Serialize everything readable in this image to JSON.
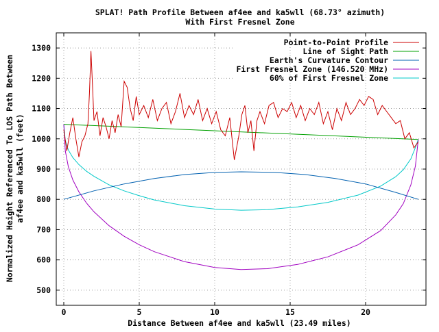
{
  "chart_data": {
    "type": "line",
    "title_line1": "SPLAT! Path Profile Between af4ee and ka5wll (68.73° azimuth)",
    "title_line2": "With First Fresnel Zone",
    "xlabel": "Distance Between af4ee and ka5wll (23.49 miles)",
    "ylabel_line1": "Normalized Height Referenced To LOS Path Between",
    "ylabel_line2": "af4ee and ka5wll (feet)",
    "xlim": [
      -0.5,
      24
    ],
    "ylim": [
      450,
      1350
    ],
    "x_ticks": [
      0,
      5,
      10,
      15,
      20
    ],
    "y_ticks": [
      500,
      600,
      700,
      800,
      900,
      1000,
      1100,
      1200,
      1300
    ],
    "grid": true,
    "legend_position": "top-right",
    "series": [
      {
        "name": "Point-to-Point Profile",
        "color": "#cc0000",
        "x": [
          0,
          0.2,
          0.4,
          0.6,
          0.8,
          1.0,
          1.2,
          1.4,
          1.6,
          1.7,
          1.8,
          1.9,
          2.0,
          2.2,
          2.4,
          2.6,
          2.8,
          3.0,
          3.2,
          3.4,
          3.6,
          3.8,
          4.0,
          4.2,
          4.4,
          4.6,
          4.8,
          5.0,
          5.3,
          5.6,
          5.9,
          6.2,
          6.5,
          6.8,
          7.1,
          7.4,
          7.7,
          8.0,
          8.3,
          8.6,
          8.9,
          9.2,
          9.5,
          9.8,
          10.1,
          10.4,
          10.7,
          11.0,
          11.3,
          11.6,
          11.8,
          12.0,
          12.2,
          12.4,
          12.6,
          12.8,
          13.0,
          13.3,
          13.6,
          13.9,
          14.2,
          14.5,
          14.8,
          15.1,
          15.4,
          15.7,
          16.0,
          16.3,
          16.6,
          16.9,
          17.2,
          17.5,
          17.8,
          18.1,
          18.4,
          18.7,
          19.0,
          19.3,
          19.6,
          19.9,
          20.2,
          20.5,
          20.8,
          21.1,
          21.4,
          21.7,
          22.0,
          22.3,
          22.6,
          22.9,
          23.2,
          23.49
        ],
        "y": [
          1030,
          960,
          1020,
          1070,
          1000,
          940,
          990,
          1010,
          1050,
          1150,
          1290,
          1180,
          1060,
          1090,
          1010,
          1070,
          1040,
          1000,
          1060,
          1020,
          1080,
          1040,
          1190,
          1170,
          1100,
          1060,
          1140,
          1080,
          1110,
          1070,
          1130,
          1060,
          1100,
          1120,
          1050,
          1090,
          1150,
          1070,
          1110,
          1080,
          1130,
          1060,
          1100,
          1050,
          1090,
          1030,
          1010,
          1070,
          930,
          1010,
          1080,
          1110,
          1020,
          1060,
          960,
          1060,
          1090,
          1050,
          1110,
          1120,
          1070,
          1100,
          1090,
          1120,
          1070,
          1110,
          1060,
          1100,
          1080,
          1120,
          1050,
          1090,
          1030,
          1100,
          1060,
          1120,
          1080,
          1100,
          1130,
          1110,
          1140,
          1130,
          1080,
          1110,
          1090,
          1070,
          1050,
          1060,
          1000,
          1020,
          970,
          990
        ]
      },
      {
        "name": "Line of Sight Path",
        "color": "#00a000",
        "x": [
          0,
          23.49
        ],
        "y": [
          1048,
          998
        ]
      },
      {
        "name": "Earth's Curvature Contour",
        "color": "#0060b0",
        "x": [
          0,
          2,
          4,
          6,
          8,
          10,
          11.75,
          14,
          16,
          18,
          20,
          22,
          23.49
        ],
        "y": [
          800,
          828,
          851,
          869,
          882,
          889,
          891,
          889,
          882,
          869,
          851,
          823,
          800
        ]
      },
      {
        "name": "First Fresnel Zone (146.520 MHz)",
        "color": "#a000c0",
        "x": [
          0,
          0.1,
          0.3,
          0.6,
          1.0,
          1.5,
          2.0,
          3.0,
          4.0,
          5.0,
          6.0,
          8.0,
          10.0,
          11.75,
          13.5,
          15.5,
          17.5,
          19.5,
          21.0,
          22.0,
          22.5,
          23.0,
          23.3,
          23.49
        ],
        "y": [
          1048,
          960,
          908,
          864,
          825,
          788,
          759,
          713,
          678,
          650,
          627,
          594,
          575,
          568,
          571,
          585,
          610,
          650,
          697,
          749,
          786,
          848,
          910,
          998
        ]
      },
      {
        "name": "60% of First Fresnel Zone",
        "color": "#00c8c8",
        "x": [
          0,
          0.1,
          0.3,
          0.6,
          1.0,
          1.5,
          2.0,
          3.0,
          4.0,
          5.0,
          6.0,
          8.0,
          10.0,
          11.75,
          13.5,
          15.5,
          17.5,
          19.5,
          21.0,
          22.0,
          22.5,
          23.0,
          23.3,
          23.49
        ],
        "y": [
          1048,
          995,
          963,
          938,
          915,
          893,
          876,
          848,
          828,
          812,
          798,
          779,
          768,
          764,
          766,
          775,
          790,
          814,
          844,
          875,
          898,
          934,
          971,
          998
        ]
      }
    ]
  }
}
